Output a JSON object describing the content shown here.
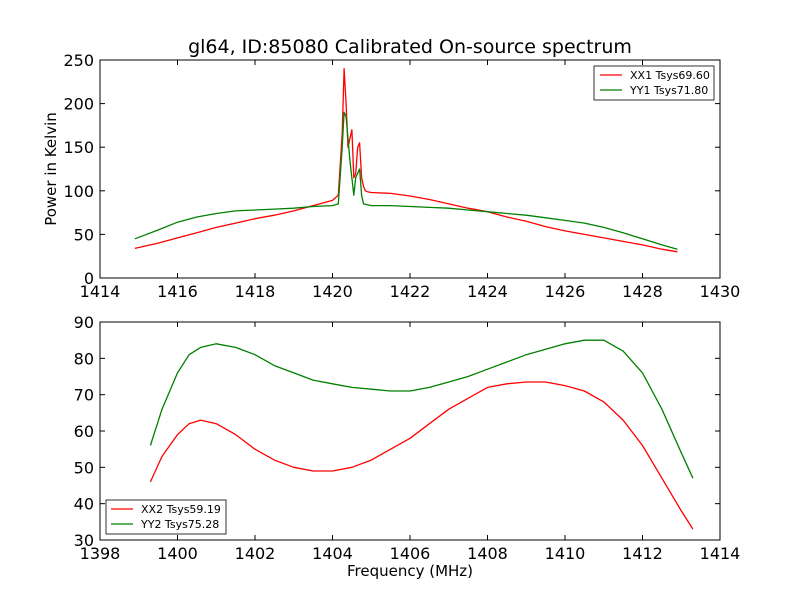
{
  "figure": {
    "title": "gl64, ID:85080 Calibrated On-source spectrum"
  },
  "chart_data": [
    {
      "type": "line",
      "title": "gl64, ID:85080 Calibrated On-source spectrum",
      "xlabel": "",
      "ylabel": "Power in Kelvin",
      "xlim": [
        1414,
        1430
      ],
      "ylim": [
        0,
        250
      ],
      "xticks": [
        1414,
        1416,
        1418,
        1420,
        1422,
        1424,
        1426,
        1428,
        1430
      ],
      "yticks": [
        0,
        50,
        100,
        150,
        200,
        250
      ],
      "grid": false,
      "legend_position": "top-right",
      "series": [
        {
          "name": "XX1 Tsys69.60",
          "color": "#ff0000",
          "x": [
            1414.9,
            1415.5,
            1416.0,
            1416.5,
            1417.0,
            1417.5,
            1418.0,
            1418.5,
            1419.0,
            1419.5,
            1420.0,
            1420.15,
            1420.25,
            1420.3,
            1420.35,
            1420.4,
            1420.5,
            1420.55,
            1420.6,
            1420.65,
            1420.7,
            1420.75,
            1420.8,
            1420.85,
            1420.9,
            1421.0,
            1421.5,
            1422.0,
            1422.5,
            1423.0,
            1423.5,
            1424.0,
            1424.5,
            1425.0,
            1425.5,
            1426.0,
            1426.5,
            1427.0,
            1427.5,
            1428.0,
            1428.5,
            1428.9
          ],
          "y": [
            34,
            40,
            46,
            52,
            58,
            63,
            68,
            72,
            77,
            83,
            89,
            95,
            165,
            240,
            200,
            150,
            170,
            115,
            120,
            150,
            155,
            115,
            105,
            100,
            99,
            98,
            97,
            94,
            90,
            85,
            80,
            76,
            70,
            65,
            59,
            54,
            50,
            46,
            42,
            38,
            33,
            30
          ]
        },
        {
          "name": "YY1 Tsys71.80",
          "color": "#008000",
          "x": [
            1414.9,
            1415.5,
            1416.0,
            1416.5,
            1417.0,
            1417.5,
            1418.0,
            1418.5,
            1419.0,
            1419.5,
            1420.0,
            1420.15,
            1420.25,
            1420.3,
            1420.35,
            1420.45,
            1420.55,
            1420.6,
            1420.7,
            1420.75,
            1420.8,
            1420.9,
            1421.0,
            1421.5,
            1422.0,
            1422.5,
            1423.0,
            1423.5,
            1424.0,
            1424.5,
            1425.0,
            1425.5,
            1426.0,
            1426.5,
            1427.0,
            1427.5,
            1428.0,
            1428.5,
            1428.9
          ],
          "y": [
            45,
            55,
            64,
            70,
            74,
            77,
            78,
            79,
            80,
            82,
            83,
            85,
            150,
            190,
            185,
            135,
            95,
            115,
            125,
            95,
            85,
            84,
            83,
            83,
            82,
            81,
            80,
            78,
            76,
            74,
            72,
            69,
            66,
            63,
            58,
            52,
            45,
            38,
            33
          ]
        }
      ]
    },
    {
      "type": "line",
      "title": "",
      "xlabel": "Frequency (MHz)",
      "ylabel": "",
      "xlim": [
        1398,
        1414
      ],
      "ylim": [
        30,
        90
      ],
      "xticks": [
        1398,
        1400,
        1402,
        1404,
        1406,
        1408,
        1410,
        1412,
        1414
      ],
      "yticks": [
        30,
        40,
        50,
        60,
        70,
        80,
        90
      ],
      "grid": false,
      "legend_position": "bottom-left",
      "series": [
        {
          "name": "XX2 Tsys59.19",
          "color": "#ff0000",
          "x": [
            1399.3,
            1399.6,
            1400.0,
            1400.3,
            1400.6,
            1401.0,
            1401.5,
            1402.0,
            1402.5,
            1403.0,
            1403.5,
            1404.0,
            1404.5,
            1405.0,
            1405.5,
            1406.0,
            1406.5,
            1407.0,
            1407.5,
            1408.0,
            1408.5,
            1409.0,
            1409.5,
            1410.0,
            1410.5,
            1411.0,
            1411.5,
            1412.0,
            1412.5,
            1413.0,
            1413.3
          ],
          "y": [
            46,
            53,
            59,
            62,
            63,
            62,
            59,
            55,
            52,
            50,
            49,
            49,
            50,
            52,
            55,
            58,
            62,
            66,
            69,
            72,
            73,
            73.5,
            73.5,
            72.5,
            71,
            68,
            63,
            56,
            47,
            38,
            33
          ]
        },
        {
          "name": "YY2 Tsys75.28",
          "color": "#008000",
          "x": [
            1399.3,
            1399.6,
            1400.0,
            1400.3,
            1400.6,
            1401.0,
            1401.5,
            1402.0,
            1402.5,
            1403.0,
            1403.5,
            1404.0,
            1404.5,
            1405.0,
            1405.5,
            1406.0,
            1406.5,
            1407.0,
            1407.5,
            1408.0,
            1408.5,
            1409.0,
            1409.5,
            1410.0,
            1410.5,
            1411.0,
            1411.5,
            1412.0,
            1412.5,
            1413.0,
            1413.3
          ],
          "y": [
            56,
            66,
            76,
            81,
            83,
            84,
            83,
            81,
            78,
            76,
            74,
            73,
            72,
            71.5,
            71,
            71,
            72,
            73.5,
            75,
            77,
            79,
            81,
            82.5,
            84,
            85,
            85,
            82,
            76,
            66,
            54,
            47
          ]
        }
      ]
    }
  ]
}
